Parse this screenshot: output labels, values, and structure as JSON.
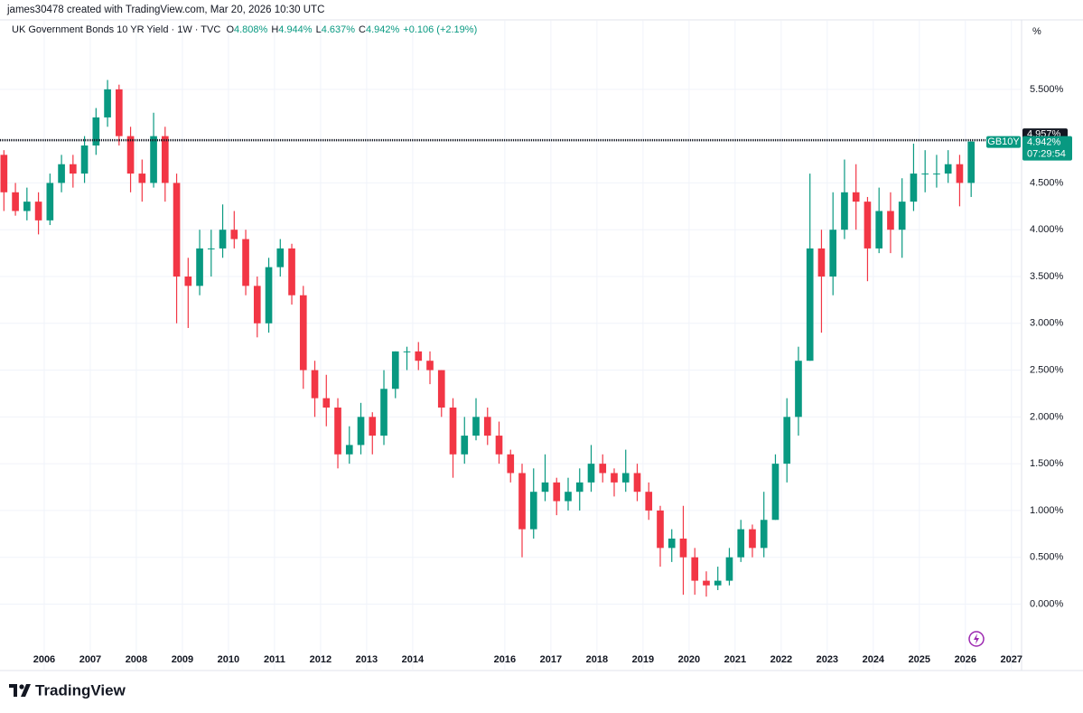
{
  "header": "james30478 created with TradingView.com, Mar 20, 2026 10:30 UTC",
  "legend": {
    "title": "UK Government Bonds 10 YR Yield · 1W · TVC",
    "items": [
      {
        "key": "O",
        "value": "4.808%"
      },
      {
        "key": "H",
        "value": "4.944%"
      },
      {
        "key": "L",
        "value": "4.637%"
      },
      {
        "key": "C",
        "value": "4.942%"
      }
    ],
    "change": "+0.106 (+2.19%)"
  },
  "axis_unit": "%",
  "logo": "TradingView",
  "chart_data": {
    "type": "candlestick",
    "up_color": "#089981",
    "down_color": "#f23645",
    "grid": true,
    "xlim": [
      2005.04,
      2027.2
    ],
    "xticks": [
      2006,
      2007,
      2008,
      2009,
      2010,
      2011,
      2012,
      2013,
      2014,
      2016,
      2017,
      2018,
      2019,
      2020,
      2021,
      2022,
      2023,
      2024,
      2025,
      2026,
      2027
    ],
    "ylim": [
      -0.42,
      6.02
    ],
    "yticks": [
      {
        "value": 0,
        "label": "0.000%"
      },
      {
        "value": 0.5,
        "label": "0.500%"
      },
      {
        "value": 1,
        "label": "1.000%"
      },
      {
        "value": 1.5,
        "label": "1.500%"
      },
      {
        "value": 2,
        "label": "2.000%"
      },
      {
        "value": 2.5,
        "label": "2.500%"
      },
      {
        "value": 3,
        "label": "3.000%"
      },
      {
        "value": 3.5,
        "label": "3.500%"
      },
      {
        "value": 4,
        "label": "4.000%"
      },
      {
        "value": 4.5,
        "label": "4.500%"
      },
      {
        "value": 5.5,
        "label": "5.500%"
      }
    ],
    "price_line": {
      "value": 4.957,
      "label": "4.957%",
      "color": "#131722"
    },
    "last_price": {
      "value": 4.942,
      "label": "4.942%",
      "symbol": "GB10Y",
      "countdown": "07:29:54",
      "color": "#089981"
    },
    "x": [
      2005.125,
      2005.375,
      2005.625,
      2005.875,
      2006.125,
      2006.375,
      2006.625,
      2006.875,
      2007.125,
      2007.375,
      2007.625,
      2007.875,
      2008.125,
      2008.375,
      2008.625,
      2008.875,
      2009.125,
      2009.375,
      2009.625,
      2009.875,
      2010.125,
      2010.375,
      2010.625,
      2010.875,
      2011.125,
      2011.375,
      2011.625,
      2011.875,
      2012.125,
      2012.375,
      2012.625,
      2012.875,
      2013.125,
      2013.375,
      2013.625,
      2013.875,
      2014.125,
      2014.375,
      2014.625,
      2014.875,
      2015.125,
      2015.375,
      2015.625,
      2015.875,
      2016.125,
      2016.375,
      2016.625,
      2016.875,
      2017.125,
      2017.375,
      2017.625,
      2017.875,
      2018.125,
      2018.375,
      2018.625,
      2018.875,
      2019.125,
      2019.375,
      2019.625,
      2019.875,
      2020.125,
      2020.375,
      2020.625,
      2020.875,
      2021.125,
      2021.375,
      2021.625,
      2021.875,
      2022.125,
      2022.375,
      2022.625,
      2022.875,
      2023.125,
      2023.375,
      2023.625,
      2023.875,
      2024.125,
      2024.375,
      2024.625,
      2024.875,
      2025.125,
      2025.375,
      2025.625,
      2025.875,
      2026.125
    ],
    "open": [
      4.8,
      4.4,
      4.2,
      4.3,
      4.1,
      4.5,
      4.7,
      4.6,
      4.9,
      5.2,
      5.5,
      5.0,
      4.6,
      4.5,
      5.0,
      4.5,
      3.5,
      3.4,
      3.8,
      3.8,
      4.0,
      3.9,
      3.4,
      3.0,
      3.6,
      3.8,
      3.3,
      2.5,
      2.2,
      2.1,
      1.6,
      1.7,
      2.0,
      1.8,
      2.3,
      2.7,
      2.7,
      2.6,
      2.5,
      2.1,
      1.6,
      1.8,
      2.0,
      1.8,
      1.6,
      1.4,
      0.8,
      1.2,
      1.3,
      1.1,
      1.2,
      1.3,
      1.5,
      1.4,
      1.3,
      1.4,
      1.2,
      1.0,
      0.6,
      0.7,
      0.5,
      0.25,
      0.2,
      0.25,
      0.5,
      0.8,
      0.6,
      0.9,
      1.5,
      2.0,
      2.6,
      3.8,
      3.5,
      4.0,
      4.4,
      4.3,
      3.8,
      4.2,
      4.0,
      4.3,
      4.6,
      4.6,
      4.6,
      4.7,
      4.5
    ],
    "high": [
      4.85,
      4.5,
      4.45,
      4.4,
      4.6,
      4.8,
      4.8,
      5.0,
      5.3,
      5.6,
      5.55,
      5.1,
      4.75,
      5.25,
      5.1,
      4.6,
      3.7,
      4.0,
      4.0,
      4.27,
      4.2,
      4.0,
      3.5,
      3.7,
      3.9,
      3.85,
      3.4,
      2.6,
      2.45,
      2.2,
      1.9,
      2.15,
      2.05,
      2.5,
      2.7,
      2.75,
      2.8,
      2.7,
      2.5,
      2.2,
      2.0,
      2.2,
      2.1,
      1.95,
      1.65,
      1.5,
      1.45,
      1.6,
      1.35,
      1.35,
      1.45,
      1.7,
      1.6,
      1.45,
      1.65,
      1.5,
      1.3,
      1.05,
      0.8,
      1.05,
      0.6,
      0.35,
      0.4,
      0.6,
      0.9,
      0.85,
      1.2,
      1.6,
      2.2,
      2.75,
      4.6,
      4.0,
      4.4,
      4.75,
      4.7,
      4.35,
      4.45,
      4.4,
      4.55,
      4.92,
      4.85,
      4.8,
      4.85,
      4.8,
      4.944
    ],
    "low": [
      4.2,
      4.15,
      4.1,
      3.95,
      4.05,
      4.4,
      4.45,
      4.5,
      4.8,
      5.1,
      4.9,
      4.4,
      4.3,
      4.45,
      4.3,
      3.0,
      2.95,
      3.3,
      3.5,
      3.7,
      3.8,
      3.3,
      2.85,
      2.9,
      3.5,
      3.2,
      2.3,
      2.0,
      1.9,
      1.45,
      1.5,
      1.6,
      1.6,
      1.7,
      2.2,
      2.5,
      2.5,
      2.35,
      2.0,
      1.35,
      1.5,
      1.75,
      1.7,
      1.5,
      1.3,
      0.5,
      0.7,
      1.1,
      0.95,
      1.0,
      1.0,
      1.2,
      1.3,
      1.15,
      1.2,
      1.1,
      0.9,
      0.4,
      0.45,
      0.1,
      0.1,
      0.08,
      0.15,
      0.2,
      0.45,
      0.5,
      0.5,
      0.9,
      1.3,
      1.8,
      2.6,
      2.9,
      3.3,
      3.9,
      4.0,
      3.45,
      3.75,
      3.75,
      3.7,
      4.2,
      4.4,
      4.45,
      4.5,
      4.25,
      4.35
    ],
    "close": [
      4.4,
      4.2,
      4.3,
      4.1,
      4.5,
      4.7,
      4.6,
      4.9,
      5.2,
      5.5,
      5.0,
      4.6,
      4.5,
      5.0,
      4.5,
      3.5,
      3.4,
      3.8,
      3.8,
      4.0,
      3.9,
      3.4,
      3.0,
      3.6,
      3.8,
      3.3,
      2.5,
      2.2,
      2.1,
      1.6,
      1.7,
      2.0,
      1.8,
      2.3,
      2.7,
      2.7,
      2.6,
      2.5,
      2.1,
      1.6,
      1.8,
      2.0,
      1.8,
      1.6,
      1.4,
      0.8,
      1.2,
      1.3,
      1.1,
      1.2,
      1.3,
      1.5,
      1.4,
      1.3,
      1.4,
      1.2,
      1.0,
      0.6,
      0.7,
      0.5,
      0.25,
      0.2,
      0.25,
      0.5,
      0.8,
      0.6,
      0.9,
      1.5,
      2.0,
      2.6,
      3.8,
      3.5,
      4.0,
      4.4,
      4.3,
      3.8,
      4.2,
      4.0,
      4.3,
      4.6,
      4.6,
      4.6,
      4.7,
      4.5,
      4.942
    ]
  }
}
